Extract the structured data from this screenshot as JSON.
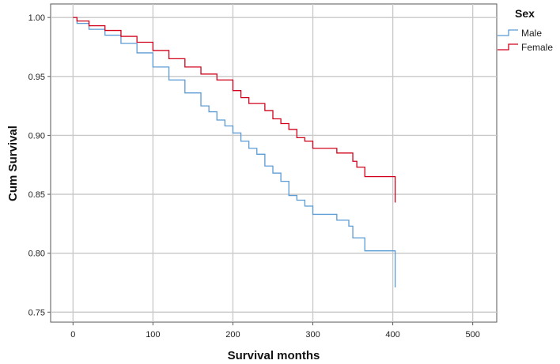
{
  "chart_data": {
    "type": "line",
    "xlabel": "Survival months",
    "ylabel": "Cum Survival",
    "xlim": [
      -28,
      530
    ],
    "ylim": [
      0.7415,
      1.0115
    ],
    "xticks": [
      0,
      100,
      200,
      300,
      400,
      500
    ],
    "yticks": [
      0.75,
      0.8,
      0.85,
      0.9,
      0.95,
      1.0
    ],
    "x_tick_labels": [
      "0",
      "100",
      "200",
      "300",
      "400",
      "500"
    ],
    "y_tick_labels": [
      "0.75",
      "0.80",
      "0.85",
      "0.90",
      "0.95",
      "1.00"
    ],
    "grid": true,
    "legend": {
      "title": "Sex",
      "position": "top-right"
    },
    "series": [
      {
        "name": "Male",
        "color": "#5b9bd5",
        "step": true,
        "points": [
          [
            0,
            1.0
          ],
          [
            5,
            0.995
          ],
          [
            20,
            0.99
          ],
          [
            40,
            0.985
          ],
          [
            60,
            0.978
          ],
          [
            80,
            0.97
          ],
          [
            100,
            0.958
          ],
          [
            120,
            0.947
          ],
          [
            140,
            0.936
          ],
          [
            160,
            0.925
          ],
          [
            170,
            0.92
          ],
          [
            180,
            0.913
          ],
          [
            190,
            0.908
          ],
          [
            200,
            0.902
          ],
          [
            210,
            0.895
          ],
          [
            220,
            0.889
          ],
          [
            230,
            0.884
          ],
          [
            240,
            0.874
          ],
          [
            250,
            0.868
          ],
          [
            260,
            0.861
          ],
          [
            270,
            0.849
          ],
          [
            280,
            0.845
          ],
          [
            290,
            0.84
          ],
          [
            300,
            0.833
          ],
          [
            315,
            0.833
          ],
          [
            330,
            0.828
          ],
          [
            345,
            0.823
          ],
          [
            350,
            0.813
          ],
          [
            365,
            0.802
          ],
          [
            380,
            0.802
          ],
          [
            403,
            0.802
          ],
          [
            403,
            0.771
          ]
        ]
      },
      {
        "name": "Female",
        "color": "#d0021b",
        "step": true,
        "points": [
          [
            0,
            1.0
          ],
          [
            5,
            0.997
          ],
          [
            20,
            0.993
          ],
          [
            40,
            0.989
          ],
          [
            60,
            0.984
          ],
          [
            80,
            0.979
          ],
          [
            100,
            0.972
          ],
          [
            120,
            0.965
          ],
          [
            140,
            0.958
          ],
          [
            160,
            0.952
          ],
          [
            180,
            0.947
          ],
          [
            200,
            0.938
          ],
          [
            210,
            0.932
          ],
          [
            220,
            0.927
          ],
          [
            240,
            0.921
          ],
          [
            250,
            0.914
          ],
          [
            260,
            0.91
          ],
          [
            270,
            0.905
          ],
          [
            280,
            0.898
          ],
          [
            290,
            0.895
          ],
          [
            300,
            0.889
          ],
          [
            330,
            0.885
          ],
          [
            350,
            0.878
          ],
          [
            355,
            0.873
          ],
          [
            365,
            0.865
          ],
          [
            380,
            0.865
          ],
          [
            403,
            0.865
          ],
          [
            403,
            0.843
          ]
        ]
      }
    ]
  }
}
